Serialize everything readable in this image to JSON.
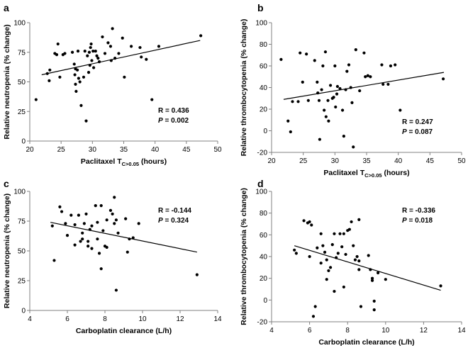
{
  "chart_data": [
    {
      "panel": "a",
      "type": "scatter",
      "xlabel": "Paclitaxel T",
      "xlabel_sub": "C>0.05",
      "xlabel_suffix": " (hours)",
      "ylabel": "Relative neutropenia (% change)",
      "xlim": [
        20,
        50
      ],
      "ylim": [
        0,
        100
      ],
      "xticks": [
        20,
        25,
        30,
        35,
        40,
        45,
        50
      ],
      "yticks": [
        0,
        25,
        50,
        75,
        100
      ],
      "stat_r": "R = 0.436",
      "stat_p_label": "P",
      "stat_p_value": " = 0.002",
      "fit": {
        "x1": 21.9,
        "y1": 56,
        "x2": 47.2,
        "y2": 85
      },
      "points": [
        [
          21.0,
          35
        ],
        [
          22.8,
          57
        ],
        [
          23.2,
          60
        ],
        [
          23.1,
          51
        ],
        [
          24.0,
          74
        ],
        [
          24.3,
          73
        ],
        [
          24.5,
          82
        ],
        [
          24.8,
          54
        ],
        [
          25.3,
          73
        ],
        [
          25.6,
          74
        ],
        [
          26.8,
          75
        ],
        [
          27.1,
          65
        ],
        [
          27.3,
          61
        ],
        [
          27.2,
          56
        ],
        [
          27.3,
          48
        ],
        [
          27.4,
          42
        ],
        [
          27.6,
          60
        ],
        [
          27.7,
          76
        ],
        [
          27.8,
          53
        ],
        [
          28.0,
          50
        ],
        [
          28.2,
          30
        ],
        [
          28.6,
          54
        ],
        [
          28.8,
          76
        ],
        [
          29.0,
          17
        ],
        [
          29.2,
          72
        ],
        [
          29.4,
          58
        ],
        [
          29.5,
          75
        ],
        [
          29.6,
          64
        ],
        [
          29.7,
          79
        ],
        [
          29.8,
          82
        ],
        [
          29.9,
          68
        ],
        [
          30.1,
          76
        ],
        [
          30.2,
          62
        ],
        [
          30.5,
          76
        ],
        [
          30.7,
          72
        ],
        [
          30.9,
          70
        ],
        [
          31.1,
          67
        ],
        [
          31.6,
          88
        ],
        [
          32.0,
          74
        ],
        [
          32.5,
          83
        ],
        [
          32.9,
          80
        ],
        [
          33.0,
          68
        ],
        [
          33.2,
          95
        ],
        [
          33.6,
          70
        ],
        [
          34.2,
          74
        ],
        [
          34.8,
          87
        ],
        [
          35.1,
          54
        ],
        [
          36.2,
          80
        ],
        [
          37.6,
          79
        ],
        [
          37.8,
          71
        ],
        [
          38.6,
          69
        ],
        [
          39.5,
          35
        ],
        [
          40.6,
          80
        ],
        [
          47.3,
          89
        ]
      ]
    },
    {
      "panel": "b",
      "type": "scatter",
      "xlabel": "Paclitaxel T",
      "xlabel_sub": "C>0.05",
      "xlabel_suffix": " (hours)",
      "ylabel": "Relative thrombocytopenia (% change)",
      "xlim": [
        20,
        50
      ],
      "ylim": [
        -20,
        100
      ],
      "xticks": [
        20,
        25,
        30,
        35,
        40,
        45,
        50
      ],
      "yticks": [
        -20,
        0,
        20,
        40,
        60,
        80,
        100
      ],
      "stat_r": "R = 0.247",
      "stat_p_label": "P",
      "stat_p_value": " = 0.087",
      "fit": {
        "x1": 21.9,
        "y1": 29,
        "x2": 47.2,
        "y2": 54
      },
      "points": [
        [
          21.5,
          66
        ],
        [
          22.6,
          9
        ],
        [
          23.0,
          -1
        ],
        [
          23.3,
          27
        ],
        [
          24.2,
          27
        ],
        [
          24.5,
          72
        ],
        [
          24.9,
          45
        ],
        [
          25.5,
          71
        ],
        [
          25.8,
          28
        ],
        [
          26.8,
          65
        ],
        [
          27.2,
          45
        ],
        [
          27.3,
          35
        ],
        [
          27.5,
          28
        ],
        [
          27.6,
          -8
        ],
        [
          27.9,
          38
        ],
        [
          28.1,
          60
        ],
        [
          28.3,
          19
        ],
        [
          28.5,
          73
        ],
        [
          28.6,
          13
        ],
        [
          28.9,
          28
        ],
        [
          29.0,
          9
        ],
        [
          29.3,
          42
        ],
        [
          29.6,
          30
        ],
        [
          29.8,
          31
        ],
        [
          30.0,
          60
        ],
        [
          30.1,
          22
        ],
        [
          30.3,
          34
        ],
        [
          30.4,
          41
        ],
        [
          30.8,
          39
        ],
        [
          31.2,
          19
        ],
        [
          31.4,
          -5
        ],
        [
          31.7,
          38
        ],
        [
          31.9,
          55
        ],
        [
          32.2,
          61
        ],
        [
          32.5,
          40
        ],
        [
          32.7,
          26
        ],
        [
          32.9,
          -15
        ],
        [
          33.3,
          75
        ],
        [
          33.9,
          37
        ],
        [
          34.6,
          72
        ],
        [
          34.8,
          50
        ],
        [
          35.2,
          51
        ],
        [
          35.6,
          50
        ],
        [
          37.4,
          61
        ],
        [
          37.6,
          43
        ],
        [
          38.4,
          43
        ],
        [
          38.8,
          60
        ],
        [
          39.5,
          61
        ],
        [
          40.3,
          19
        ],
        [
          47.1,
          48
        ]
      ]
    },
    {
      "panel": "c",
      "type": "scatter",
      "xlabel": "Carboplatin clearance (L/h)",
      "ylabel": "Relative neutropenia (% change)",
      "xlim": [
        4,
        14
      ],
      "ylim": [
        0,
        100
      ],
      "xticks": [
        4,
        6,
        8,
        10,
        12,
        14
      ],
      "yticks": [
        0,
        25,
        50,
        75,
        100
      ],
      "stat_r": "R = -0.144",
      "stat_p_label": "P",
      "stat_p_value": " = 0.324",
      "fit": {
        "x1": 5.1,
        "y1": 74,
        "x2": 12.9,
        "y2": 49
      },
      "points": [
        [
          5.2,
          71
        ],
        [
          5.3,
          42
        ],
        [
          5.6,
          87
        ],
        [
          5.7,
          83
        ],
        [
          5.9,
          73
        ],
        [
          6.0,
          63
        ],
        [
          6.2,
          80
        ],
        [
          6.4,
          72
        ],
        [
          6.4,
          55
        ],
        [
          6.6,
          80
        ],
        [
          6.7,
          58
        ],
        [
          6.8,
          65
        ],
        [
          6.8,
          60
        ],
        [
          6.9,
          73
        ],
        [
          7.0,
          81
        ],
        [
          7.1,
          58
        ],
        [
          7.1,
          54
        ],
        [
          7.2,
          68
        ],
        [
          7.3,
          71
        ],
        [
          7.3,
          52
        ],
        [
          7.5,
          88
        ],
        [
          7.6,
          74
        ],
        [
          7.6,
          60
        ],
        [
          7.7,
          48
        ],
        [
          7.8,
          88
        ],
        [
          7.8,
          35
        ],
        [
          7.9,
          67
        ],
        [
          8.0,
          54
        ],
        [
          8.1,
          53
        ],
        [
          8.1,
          76
        ],
        [
          8.3,
          84
        ],
        [
          8.4,
          81
        ],
        [
          8.5,
          95
        ],
        [
          8.5,
          73
        ],
        [
          8.6,
          76
        ],
        [
          8.6,
          17
        ],
        [
          8.7,
          65
        ],
        [
          9.1,
          77
        ],
        [
          9.2,
          49
        ],
        [
          9.3,
          60
        ],
        [
          9.5,
          61
        ],
        [
          9.8,
          73
        ],
        [
          12.9,
          30
        ]
      ]
    },
    {
      "panel": "d",
      "type": "scatter",
      "xlabel": "Carboplatin clearance (L/h)",
      "ylabel": "Relative thrombocytopenia (% change)",
      "xlim": [
        4,
        14
      ],
      "ylim": [
        -20,
        100
      ],
      "xticks": [
        4,
        6,
        8,
        10,
        12,
        14
      ],
      "yticks": [
        -20,
        0,
        20,
        40,
        60,
        80,
        100
      ],
      "stat_r": "R = -0.336",
      "stat_p_label": "P",
      "stat_p_value": " = 0.018",
      "fit": {
        "x1": 5.2,
        "y1": 50,
        "x2": 12.9,
        "y2": 9
      },
      "points": [
        [
          5.2,
          46
        ],
        [
          5.3,
          43
        ],
        [
          5.7,
          73
        ],
        [
          5.9,
          71
        ],
        [
          6.0,
          40
        ],
        [
          6.0,
          72
        ],
        [
          6.1,
          69
        ],
        [
          6.2,
          -15
        ],
        [
          6.3,
          -6
        ],
        [
          6.4,
          48
        ],
        [
          6.6,
          61
        ],
        [
          6.6,
          34
        ],
        [
          6.7,
          50
        ],
        [
          6.8,
          44
        ],
        [
          6.9,
          37
        ],
        [
          6.9,
          19
        ],
        [
          7.0,
          27
        ],
        [
          7.1,
          30
        ],
        [
          7.2,
          51
        ],
        [
          7.3,
          61
        ],
        [
          7.3,
          8
        ],
        [
          7.4,
          39
        ],
        [
          7.5,
          43
        ],
        [
          7.6,
          61
        ],
        [
          7.7,
          49
        ],
        [
          7.8,
          61
        ],
        [
          7.8,
          12
        ],
        [
          7.9,
          42
        ],
        [
          8.0,
          64
        ],
        [
          8.1,
          65
        ],
        [
          8.2,
          72
        ],
        [
          8.3,
          50
        ],
        [
          8.4,
          37
        ],
        [
          8.5,
          40
        ],
        [
          8.6,
          74
        ],
        [
          8.6,
          36
        ],
        [
          8.6,
          28
        ],
        [
          8.7,
          -6
        ],
        [
          9.1,
          41
        ],
        [
          9.2,
          28
        ],
        [
          9.3,
          20
        ],
        [
          9.3,
          18
        ],
        [
          9.4,
          -1
        ],
        [
          9.4,
          -9
        ],
        [
          9.6,
          25
        ],
        [
          10.0,
          19
        ],
        [
          12.9,
          13
        ]
      ]
    }
  ]
}
